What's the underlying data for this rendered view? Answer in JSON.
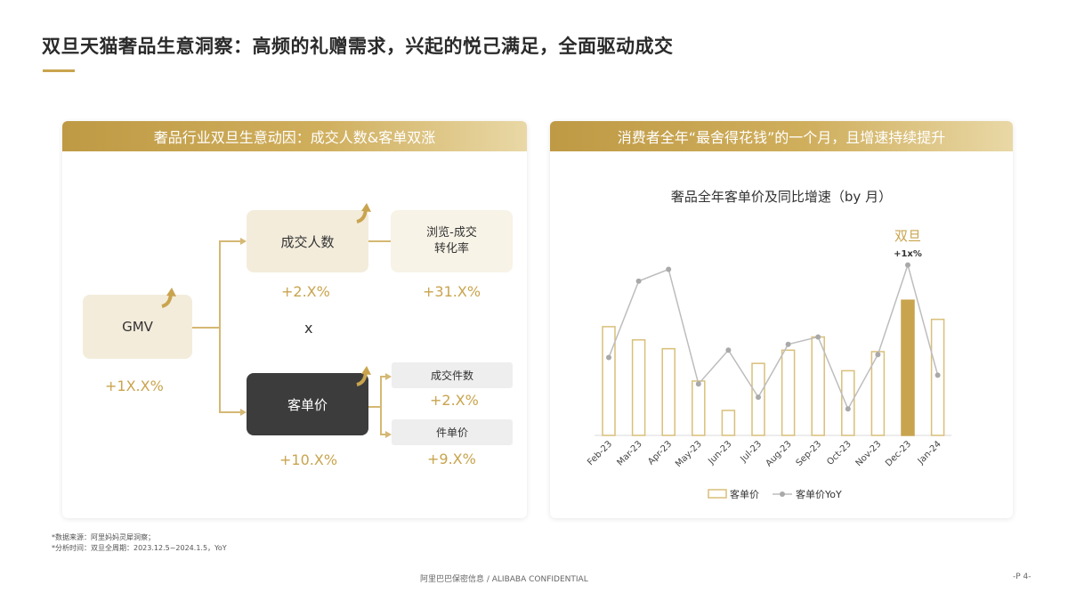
{
  "page": {
    "title": "双旦天猫奢品生意洞察：高频的礼赠需求，兴起的悦己满足，全面驱动成交",
    "footnotes": [
      "*数据来源：阿里妈妈灵犀洞察；",
      "*分析时间：双旦全周期：2023.12.5~2024.1.5，YoY"
    ],
    "footer_center": "阿里巴巴保密信息 / ALIBABA CONFIDENTIAL",
    "footer_page": "-P 4-",
    "accent_color": "#c9a44e"
  },
  "left_panel": {
    "header": "奢品行业双旦生意动因：成交人数&客单双涨",
    "gmv": {
      "label": "GMV",
      "value": "+1X.X%"
    },
    "buyers": {
      "label": "成交人数",
      "value": "+2.X%"
    },
    "conversion": {
      "label_line1": "浏览-成交",
      "label_line2": "转化率",
      "value": "+31.X%"
    },
    "multiply": "x",
    "aov": {
      "label": "客单价",
      "value": "+10.X%"
    },
    "items": {
      "label": "成交件数",
      "value": "+2.X%"
    },
    "unit_price": {
      "label": "件单价",
      "value": "+9.X%"
    }
  },
  "right_panel": {
    "header": "消费者全年“最舍得花钱”的一个月，且增速持续提升"
  },
  "chart_data": {
    "type": "bar",
    "title": "奢品全年客单价及同比增速（by 月）",
    "categories": [
      "Feb-23",
      "Mar-23",
      "Apr-23",
      "May-23",
      "Jun-23",
      "Jul-23",
      "Aug-23",
      "Sep-23",
      "Oct-23",
      "Nov-23",
      "Dec-23",
      "Jan-24"
    ],
    "series": [
      {
        "name": "客单价",
        "kind": "bar",
        "values": [
          74,
          65,
          59,
          37,
          17,
          49,
          58,
          67,
          44,
          57,
          92,
          79
        ]
      },
      {
        "name": "客单价YoY",
        "kind": "line",
        "values": [
          53,
          105,
          113,
          35,
          58,
          26,
          62,
          67,
          18,
          55,
          116,
          41
        ]
      }
    ],
    "highlight": {
      "category": "Dec-23",
      "label": "双旦",
      "annotation": "+1x%"
    },
    "legend_position": "bottom",
    "colors": {
      "bar": "#d9bf79",
      "bar_highlight": "#c9a44e",
      "line": "#bdbdbd"
    }
  }
}
